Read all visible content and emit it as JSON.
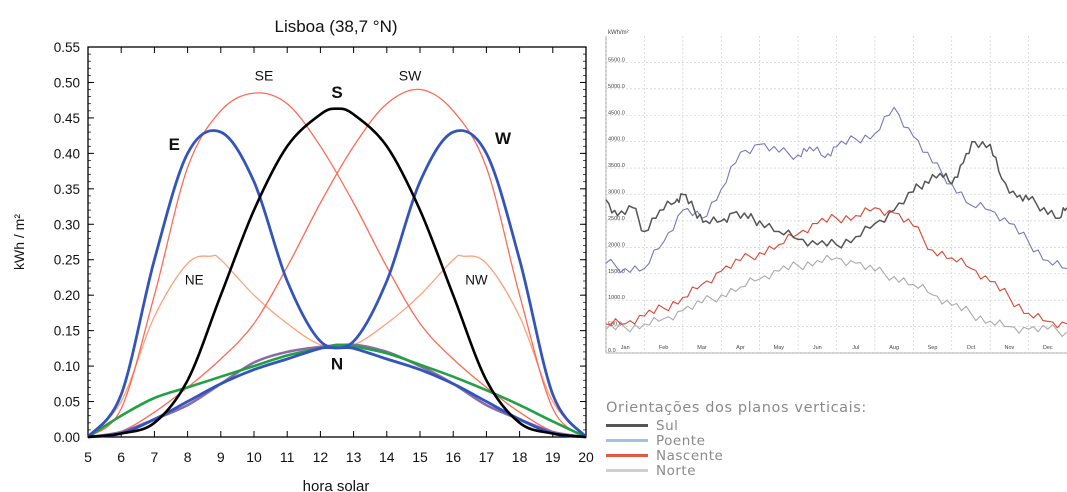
{
  "chart_data": [
    {
      "type": "line",
      "title": "Lisboa (38,7 °N)",
      "xlabel": "hora solar",
      "ylabel": "kWh / m²",
      "xlim": [
        5,
        20
      ],
      "ylim": [
        0,
        0.55
      ],
      "xticks": [
        5,
        6,
        7,
        8,
        9,
        10,
        11,
        12,
        13,
        14,
        15,
        16,
        17,
        18,
        19,
        20
      ],
      "yticks": [
        0.0,
        0.05,
        0.1,
        0.15,
        0.2,
        0.25,
        0.3,
        0.35,
        0.4,
        0.45,
        0.5,
        0.55
      ],
      "grid": false,
      "series": [
        {
          "name": "S",
          "color": "#000000",
          "x": [
            5,
            6,
            7,
            8,
            9,
            10,
            11,
            12,
            12.5,
            13,
            14,
            15,
            16,
            17,
            18,
            19,
            20
          ],
          "y": [
            0.0,
            0.005,
            0.02,
            0.08,
            0.2,
            0.32,
            0.41,
            0.455,
            0.463,
            0.455,
            0.41,
            0.32,
            0.2,
            0.08,
            0.02,
            0.005,
            0.0
          ]
        },
        {
          "name": "E",
          "color": "#3355bb",
          "x": [
            5,
            6,
            7,
            8,
            9,
            10,
            11,
            12,
            13,
            14,
            15,
            16,
            17,
            18,
            19,
            20
          ],
          "y": [
            0.0,
            0.06,
            0.25,
            0.4,
            0.43,
            0.36,
            0.22,
            0.135,
            0.125,
            0.11,
            0.095,
            0.075,
            0.05,
            0.025,
            0.005,
            0.0
          ]
        },
        {
          "name": "W",
          "color": "#3355bb",
          "x": [
            5,
            6,
            7,
            8,
            9,
            10,
            11,
            12,
            13,
            14,
            15,
            16,
            17,
            18,
            19,
            20
          ],
          "y": [
            0.0,
            0.005,
            0.025,
            0.05,
            0.075,
            0.095,
            0.11,
            0.125,
            0.135,
            0.22,
            0.36,
            0.43,
            0.4,
            0.25,
            0.06,
            0.0
          ]
        },
        {
          "name": "SE",
          "color": "#ff6a55",
          "x": [
            5,
            6,
            7,
            8,
            9,
            10,
            11,
            12,
            13,
            14,
            15,
            16,
            17,
            18,
            19,
            20
          ],
          "y": [
            0.0,
            0.04,
            0.2,
            0.38,
            0.46,
            0.485,
            0.47,
            0.41,
            0.33,
            0.24,
            0.16,
            0.11,
            0.07,
            0.035,
            0.008,
            0.0
          ]
        },
        {
          "name": "SW",
          "color": "#ff6a55",
          "x": [
            5,
            6,
            7,
            8,
            9,
            10,
            11,
            12,
            13,
            14,
            15,
            16,
            17,
            18,
            19,
            20
          ],
          "y": [
            0.0,
            0.008,
            0.035,
            0.07,
            0.11,
            0.16,
            0.24,
            0.33,
            0.41,
            0.47,
            0.49,
            0.46,
            0.38,
            0.2,
            0.04,
            0.0
          ]
        },
        {
          "name": "NE",
          "color": "#ffa07a",
          "x": [
            5,
            6,
            7,
            8,
            8.7,
            9,
            10,
            11,
            12,
            13,
            14,
            15,
            16,
            17,
            18,
            19,
            20
          ],
          "y": [
            0.0,
            0.05,
            0.17,
            0.245,
            0.255,
            0.25,
            0.2,
            0.16,
            0.13,
            0.125,
            0.11,
            0.095,
            0.075,
            0.05,
            0.025,
            0.006,
            0.0
          ]
        },
        {
          "name": "NW",
          "color": "#ffa07a",
          "x": [
            5,
            6,
            7,
            8,
            9,
            10,
            11,
            12,
            13,
            14,
            15,
            16,
            16.3,
            17,
            18,
            19,
            20
          ],
          "y": [
            0.0,
            0.006,
            0.025,
            0.05,
            0.075,
            0.095,
            0.11,
            0.125,
            0.13,
            0.16,
            0.2,
            0.25,
            0.255,
            0.245,
            0.17,
            0.05,
            0.0
          ]
        },
        {
          "name": "N",
          "color": "#22a044",
          "x": [
            5,
            6,
            7,
            8,
            9,
            10,
            11,
            12,
            12.5,
            13,
            14,
            15,
            16,
            17,
            18,
            19,
            20
          ],
          "y": [
            0.0,
            0.03,
            0.055,
            0.07,
            0.085,
            0.1,
            0.115,
            0.125,
            0.13,
            0.128,
            0.118,
            0.102,
            0.085,
            0.066,
            0.045,
            0.022,
            0.0
          ]
        },
        {
          "name": "",
          "color": "#8a6aa8",
          "x": [
            5,
            6,
            7,
            8,
            9,
            10,
            11,
            12,
            13,
            14,
            15,
            16,
            17,
            18,
            19,
            20
          ],
          "y": [
            0.0,
            0.007,
            0.025,
            0.045,
            0.075,
            0.105,
            0.12,
            0.127,
            0.13,
            0.12,
            0.1,
            0.075,
            0.045,
            0.025,
            0.007,
            0.0
          ]
        }
      ],
      "labels": [
        "SE",
        "SW",
        "S",
        "E",
        "W",
        "NE",
        "NW",
        "N"
      ]
    },
    {
      "type": "line",
      "ylabel": "kWh/m²",
      "ylim": [
        0,
        6000
      ],
      "yticks": [
        "0.0",
        "500.0",
        "1000.0",
        "1500.0",
        "2000.0",
        "2500.0",
        "3000.0",
        "3500.0",
        "4000.0",
        "4500.0",
        "5000.0",
        "5500.0"
      ],
      "xticks": [
        "Jan",
        "Feb",
        "Mar",
        "Apr",
        "May",
        "Jun",
        "Jul",
        "Aug",
        "Sep",
        "Oct",
        "Nov",
        "Dec"
      ],
      "grid": true,
      "legend_title": "Orientações dos planos verticais:",
      "legend_position": "below",
      "series": [
        {
          "name": "Sul",
          "color": "#555555",
          "x": [
            0,
            0.3,
            0.7,
            1,
            1.4,
            1.8,
            2,
            2.3,
            2.6,
            3,
            3.3,
            3.7,
            4,
            4.5,
            5,
            5.5,
            6,
            6.5,
            7,
            7.5,
            8,
            8.3,
            8.7,
            9,
            9.3,
            9.6,
            10,
            10.3,
            10.7,
            11,
            11.4,
            11.8,
            12
          ],
          "y": [
            2900,
            2600,
            2750,
            2300,
            2700,
            2850,
            3000,
            2700,
            2500,
            2500,
            2650,
            2550,
            2500,
            2300,
            2150,
            2050,
            2050,
            2200,
            2450,
            2700,
            3050,
            3250,
            3400,
            3200,
            3600,
            4000,
            3950,
            3300,
            2950,
            2900,
            2750,
            2550,
            2750
          ]
        },
        {
          "name": "Poente",
          "color": "#7777bb",
          "x": [
            0,
            0.5,
            1,
            1.5,
            2,
            2.5,
            3,
            3.5,
            4,
            4.5,
            5,
            5.3,
            5.7,
            6,
            6.5,
            7,
            7.5,
            8,
            8.5,
            9,
            9.5,
            10,
            10.5,
            11,
            11.5,
            12
          ],
          "y": [
            1700,
            1600,
            1600,
            2100,
            2700,
            2550,
            3100,
            3800,
            3950,
            3800,
            3750,
            3900,
            3700,
            3900,
            4050,
            4150,
            4650,
            4100,
            3600,
            3200,
            2800,
            2700,
            2450,
            2100,
            1750,
            1600
          ]
        },
        {
          "name": "Nascente",
          "color": "#dd4433",
          "x": [
            0,
            0.5,
            1,
            1.5,
            2,
            2.5,
            3,
            3.5,
            4,
            4.5,
            5,
            5.5,
            6,
            6.5,
            7,
            7.5,
            8,
            8.5,
            9,
            9.5,
            10,
            10.5,
            11,
            11.5,
            12
          ],
          "y": [
            550,
            550,
            700,
            850,
            1050,
            1300,
            1550,
            1750,
            1900,
            2050,
            2250,
            2450,
            2550,
            2600,
            2750,
            2650,
            2400,
            1950,
            1800,
            1600,
            1350,
            1050,
            750,
            600,
            550
          ]
        },
        {
          "name": "Norte",
          "color": "#aaaaaa",
          "x": [
            0,
            0.5,
            1,
            1.5,
            2,
            2.5,
            3,
            3.5,
            4,
            4.5,
            5,
            5.5,
            6,
            6.5,
            7,
            7.5,
            8,
            8.5,
            9,
            9.5,
            10,
            10.5,
            11,
            11.5,
            12
          ],
          "y": [
            450,
            480,
            550,
            650,
            800,
            950,
            1100,
            1250,
            1400,
            1550,
            1650,
            1750,
            1800,
            1700,
            1550,
            1450,
            1300,
            1100,
            900,
            750,
            600,
            500,
            450,
            450,
            400
          ]
        }
      ]
    }
  ]
}
